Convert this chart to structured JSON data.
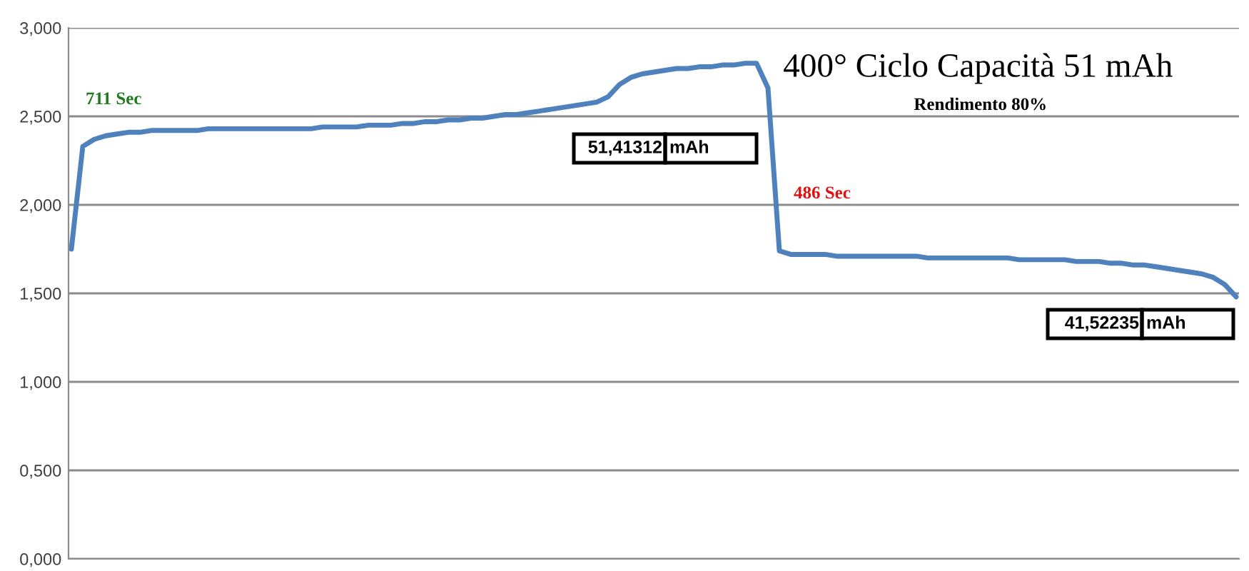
{
  "chart_data": {
    "type": "line",
    "title": "400° Ciclo Capacità 51 mAh",
    "subtitle": "Rendimento 80%",
    "annotations": [
      "711 Sec",
      "486 Sec",
      "51,41312",
      "mAh",
      "41,52235",
      "mAh"
    ],
    "categories": [
      null,
      null,
      null,
      null,
      null,
      null,
      null,
      null,
      null,
      null,
      null,
      null,
      null,
      null,
      null,
      null,
      null,
      null,
      null,
      null,
      null,
      null,
      null,
      null,
      null,
      null,
      null,
      null,
      null,
      null,
      null,
      null,
      null,
      null,
      null,
      null,
      null,
      null,
      null,
      null,
      null,
      null,
      null,
      null,
      null,
      null,
      null,
      null,
      null,
      null,
      null,
      null,
      null,
      null,
      null,
      null,
      null,
      null,
      null,
      null,
      null,
      null,
      null,
      null,
      null,
      null,
      null,
      null,
      null,
      null,
      null,
      null,
      null,
      null,
      null,
      null,
      null,
      null,
      null,
      null,
      null,
      null,
      null,
      null,
      null,
      null,
      null,
      null,
      null,
      null,
      null,
      null,
      null,
      null,
      null,
      null,
      null,
      null,
      null,
      null,
      null,
      null,
      null
    ],
    "series": [
      {
        "color": "#4f81bd",
        "values": [
          1.75,
          2.33,
          2.37,
          2.39,
          2.4,
          2.41,
          2.41,
          2.42,
          2.42,
          2.42,
          2.42,
          2.42,
          2.43,
          2.43,
          2.43,
          2.43,
          2.43,
          2.43,
          2.43,
          2.43,
          2.43,
          2.43,
          2.44,
          2.44,
          2.44,
          2.44,
          2.45,
          2.45,
          2.45,
          2.46,
          2.46,
          2.47,
          2.47,
          2.48,
          2.48,
          2.49,
          2.49,
          2.5,
          2.51,
          2.51,
          2.52,
          2.53,
          2.54,
          2.55,
          2.56,
          2.57,
          2.58,
          2.61,
          2.68,
          2.72,
          2.74,
          2.75,
          2.76,
          2.77,
          2.77,
          2.78,
          2.78,
          2.79,
          2.79,
          2.8,
          2.8,
          2.66,
          1.74,
          1.72,
          1.72,
          1.72,
          1.72,
          1.71,
          1.71,
          1.71,
          1.71,
          1.71,
          1.71,
          1.71,
          1.71,
          1.7,
          1.7,
          1.7,
          1.7,
          1.7,
          1.7,
          1.7,
          1.7,
          1.69,
          1.69,
          1.69,
          1.69,
          1.69,
          1.68,
          1.68,
          1.68,
          1.67,
          1.67,
          1.66,
          1.66,
          1.65,
          1.64,
          1.63,
          1.62,
          1.61,
          1.59,
          1.55,
          1.48
        ]
      }
    ],
    "ylim": [
      0,
      3
    ],
    "yticks": [
      {
        "value": 0,
        "label": "0,000"
      },
      {
        "value": 0.5,
        "label": "0,500"
      },
      {
        "value": 1,
        "label": "1,000"
      },
      {
        "value": 1.5,
        "label": "1,500"
      },
      {
        "value": 2,
        "label": "2,000"
      },
      {
        "value": 2.5,
        "label": "2,500"
      },
      {
        "value": 3,
        "label": "3,000"
      }
    ],
    "grid": "y",
    "marker": "none",
    "line_style": "solid"
  }
}
